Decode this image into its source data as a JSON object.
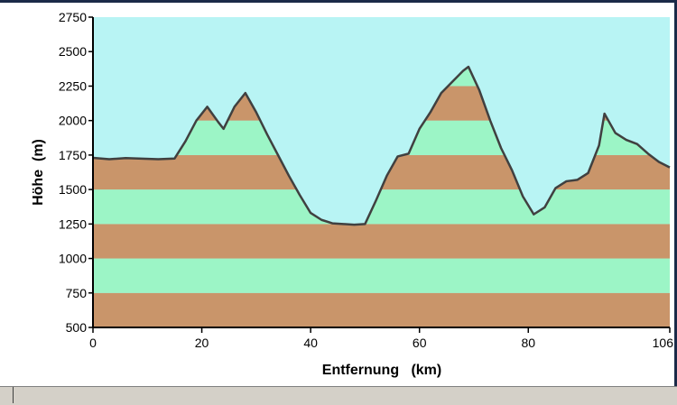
{
  "chart_data": {
    "type": "area",
    "title": "",
    "xlabel": "Entfernung   (km)",
    "ylabel": "Höhe  (m)",
    "xlim": [
      0,
      106
    ],
    "ylim": [
      500,
      2750
    ],
    "x_ticks": [
      0,
      20,
      40,
      60,
      80,
      106
    ],
    "x_tick_labels": [
      "0",
      "20",
      "40",
      "60",
      "80",
      "106"
    ],
    "y_ticks": [
      500,
      750,
      1000,
      1250,
      1500,
      1750,
      2000,
      2250,
      2500,
      2750
    ],
    "y_tick_labels": [
      "500",
      "750",
      "1000",
      "1250",
      "1500",
      "1750",
      "2000",
      "2250",
      "2500",
      "2750"
    ],
    "band_step": 250,
    "colors": {
      "sky": "#b8f4f4",
      "band_brown": "#c9956a",
      "band_green": "#9cf5c6",
      "profile_line": "#404040"
    },
    "series": [
      {
        "x": [
          0,
          3,
          6,
          9,
          12,
          15,
          17,
          19,
          21,
          23,
          24,
          26,
          28,
          30,
          32,
          34,
          36,
          38,
          40,
          42,
          44,
          46,
          48,
          50,
          52,
          54,
          56,
          58,
          60,
          62,
          64,
          66,
          68,
          69,
          71,
          73,
          75,
          77,
          79,
          81,
          83,
          85,
          87,
          89,
          91,
          93,
          94,
          96,
          98,
          100,
          102,
          104,
          106
        ],
        "y": [
          1730,
          1720,
          1728,
          1724,
          1720,
          1725,
          1850,
          2000,
          2100,
          1990,
          1940,
          2100,
          2200,
          2060,
          1900,
          1750,
          1600,
          1460,
          1330,
          1280,
          1255,
          1250,
          1245,
          1250,
          1420,
          1600,
          1740,
          1760,
          1940,
          2060,
          2200,
          2280,
          2360,
          2390,
          2220,
          2000,
          1800,
          1640,
          1450,
          1320,
          1370,
          1510,
          1560,
          1570,
          1620,
          1820,
          2050,
          1910,
          1860,
          1830,
          1760,
          1700,
          1660
        ]
      }
    ]
  }
}
